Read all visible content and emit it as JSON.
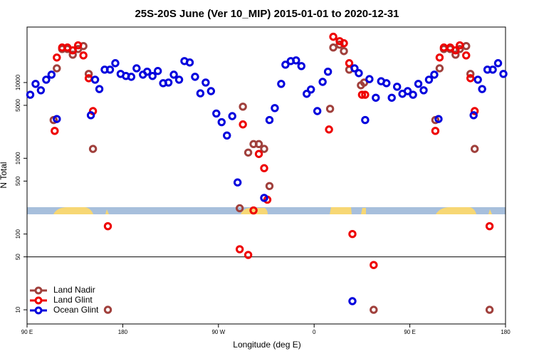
{
  "chart_data": {
    "type": "scatter",
    "title": "25S-20S June (Ver 10_MIP)   2015-01-01 to 2020-12-31",
    "xlabel": "Longitude (deg E)",
    "ylabel": "N Total",
    "xlim": [
      90,
      540
    ],
    "ylim": [
      6.5,
      54000
    ],
    "log_y": true,
    "xticks": [
      {
        "value": 90,
        "label": "90 E"
      },
      180,
      {
        "value": 270,
        "label": "90 W"
      },
      {
        "value": 360,
        "label": "0"
      },
      {
        "value": 450,
        "label": "90 E"
      },
      {
        "value": 540,
        "label": "180"
      }
    ],
    "yticks": [
      10,
      50,
      100,
      500,
      1000,
      5000,
      10000
    ],
    "hline": 50,
    "legend": "lower left",
    "series": [
      {
        "name": "Land Nadir",
        "color": "#a0403c",
        "x": [
          115,
          118,
          123,
          128,
          133,
          138,
          143,
          148,
          152,
          166,
          290,
          293,
          298,
          303,
          308,
          313,
          318,
          375,
          378,
          384,
          388,
          393,
          404,
          407,
          416,
          474,
          478,
          482,
          488,
          493,
          497,
          503,
          507,
          511,
          525
        ],
        "values": [
          3200,
          15400,
          27700,
          27700,
          23300,
          27700,
          30300,
          13000,
          1330,
          10,
          219,
          4800,
          1190,
          1540,
          1540,
          1330,
          430,
          4500,
          29000,
          31600,
          26000,
          14800,
          9200,
          10000,
          10,
          3200,
          15400,
          27700,
          27700,
          23300,
          27700,
          30300,
          13000,
          1330,
          10
        ]
      },
      {
        "name": "Land Glint",
        "color": "#ee0000",
        "x": [
          116,
          118,
          123,
          128,
          133,
          138,
          143,
          148,
          152,
          166,
          290,
          293,
          298,
          303,
          308,
          313,
          316,
          374,
          378,
          384,
          388,
          393,
          396,
          405,
          408,
          416,
          474,
          478,
          482,
          488,
          493,
          497,
          503,
          507,
          511,
          525
        ],
        "values": [
          2300,
          21400,
          29000,
          29000,
          26600,
          31000,
          22800,
          11400,
          4200,
          127,
          63,
          2800,
          53,
          205,
          1140,
          740,
          284,
          2400,
          40200,
          35200,
          33000,
          18000,
          100,
          6900,
          6900,
          39,
          2300,
          21400,
          29000,
          29000,
          26600,
          31000,
          22800,
          11400,
          4200,
          127
        ]
      },
      {
        "name": "Ocean Glint",
        "color": "#0000dd",
        "x": [
          93,
          98,
          103,
          108,
          113,
          118,
          150,
          154,
          158,
          163,
          168,
          173,
          178,
          183,
          188,
          193,
          199,
          203,
          208,
          213,
          218,
          223,
          228,
          233,
          238,
          243,
          248,
          253,
          258,
          263,
          268,
          273,
          278,
          283,
          288,
          313,
          318,
          323,
          329,
          333,
          338,
          343,
          348,
          353,
          357,
          363,
          368,
          373,
          396,
          398,
          402,
          408,
          412,
          418,
          423,
          428,
          433,
          438,
          443,
          448,
          453,
          458,
          463,
          468,
          473,
          477,
          510,
          514,
          518,
          523,
          528,
          533,
          538
        ],
        "values": [
          6900,
          9600,
          7900,
          10900,
          12700,
          3300,
          3700,
          10900,
          8200,
          14800,
          14800,
          18000,
          13000,
          12200,
          11900,
          15400,
          12700,
          13900,
          12200,
          14200,
          9800,
          10000,
          12700,
          10900,
          19200,
          18400,
          11900,
          7200,
          10000,
          7700,
          3900,
          3000,
          2000,
          3600,
          480,
          300,
          3200,
          4600,
          9600,
          17200,
          19200,
          19600,
          16500,
          7100,
          8100,
          4200,
          10200,
          13900,
          13,
          15400,
          13300,
          3200,
          11100,
          6300,
          10400,
          9800,
          6300,
          8800,
          7100,
          7700,
          6900,
          9600,
          7900,
          10900,
          12700,
          3300,
          3700,
          10900,
          8200,
          14800,
          14800,
          18000,
          13000
        ]
      }
    ]
  }
}
